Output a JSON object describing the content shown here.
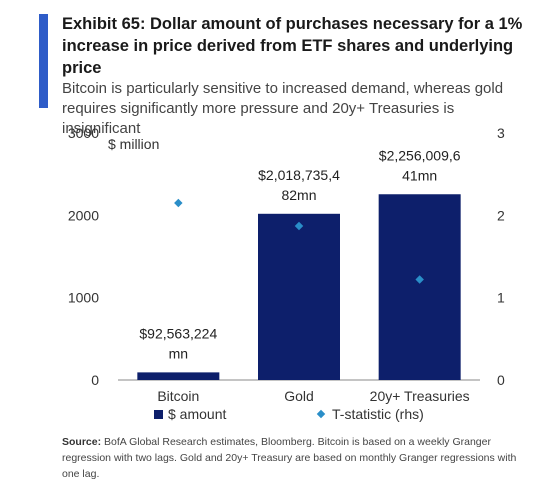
{
  "header": {
    "title_line1": "Exhibit 65: Dollar amount of purchases necessary for a 1%",
    "title_line2": "increase in price derived from ETF shares and underlying price",
    "subtitle_line1": "Bitcoin is particularly sensitive to increased demand, whereas gold",
    "subtitle_line2": "requires significantly more pressure and 20y+ Treasuries is insignificant"
  },
  "colors": {
    "accent": "#2e5cc8",
    "bar": "#0d1f6b",
    "marker": "#2a8ec8"
  },
  "chart_data": {
    "type": "bar",
    "categories": [
      "Bitcoin",
      "Gold",
      "20y+ Treasuries"
    ],
    "y_unit_label": "$ million",
    "ylim": [
      0,
      3000
    ],
    "yticks": [
      "0",
      "1000",
      "2000",
      "3000"
    ],
    "y2lim": [
      0,
      3
    ],
    "y2ticks": [
      "0",
      "1",
      "2",
      "3"
    ],
    "legend_position": "bottom",
    "grid": false,
    "series": [
      {
        "name": "$ amount",
        "axis": "left",
        "values": [
          92.563224,
          2018.735482,
          2256.009641
        ],
        "data_labels": [
          [
            "$92,563,224",
            "mn"
          ],
          [
            "$2,018,735,4",
            "82mn"
          ],
          [
            "$2,256,009,6",
            "41mn"
          ]
        ]
      },
      {
        "name": "T-statistic (rhs)",
        "axis": "right",
        "values": [
          2.15,
          1.87,
          1.22
        ]
      }
    ]
  },
  "source": {
    "label": "Source:",
    "text": " BofA Global Research estimates, Bloomberg. Bitcoin is based on a weekly Granger regression with two lags. Gold and 20y+ Treasury are based on monthly Granger regressions with one lag."
  }
}
